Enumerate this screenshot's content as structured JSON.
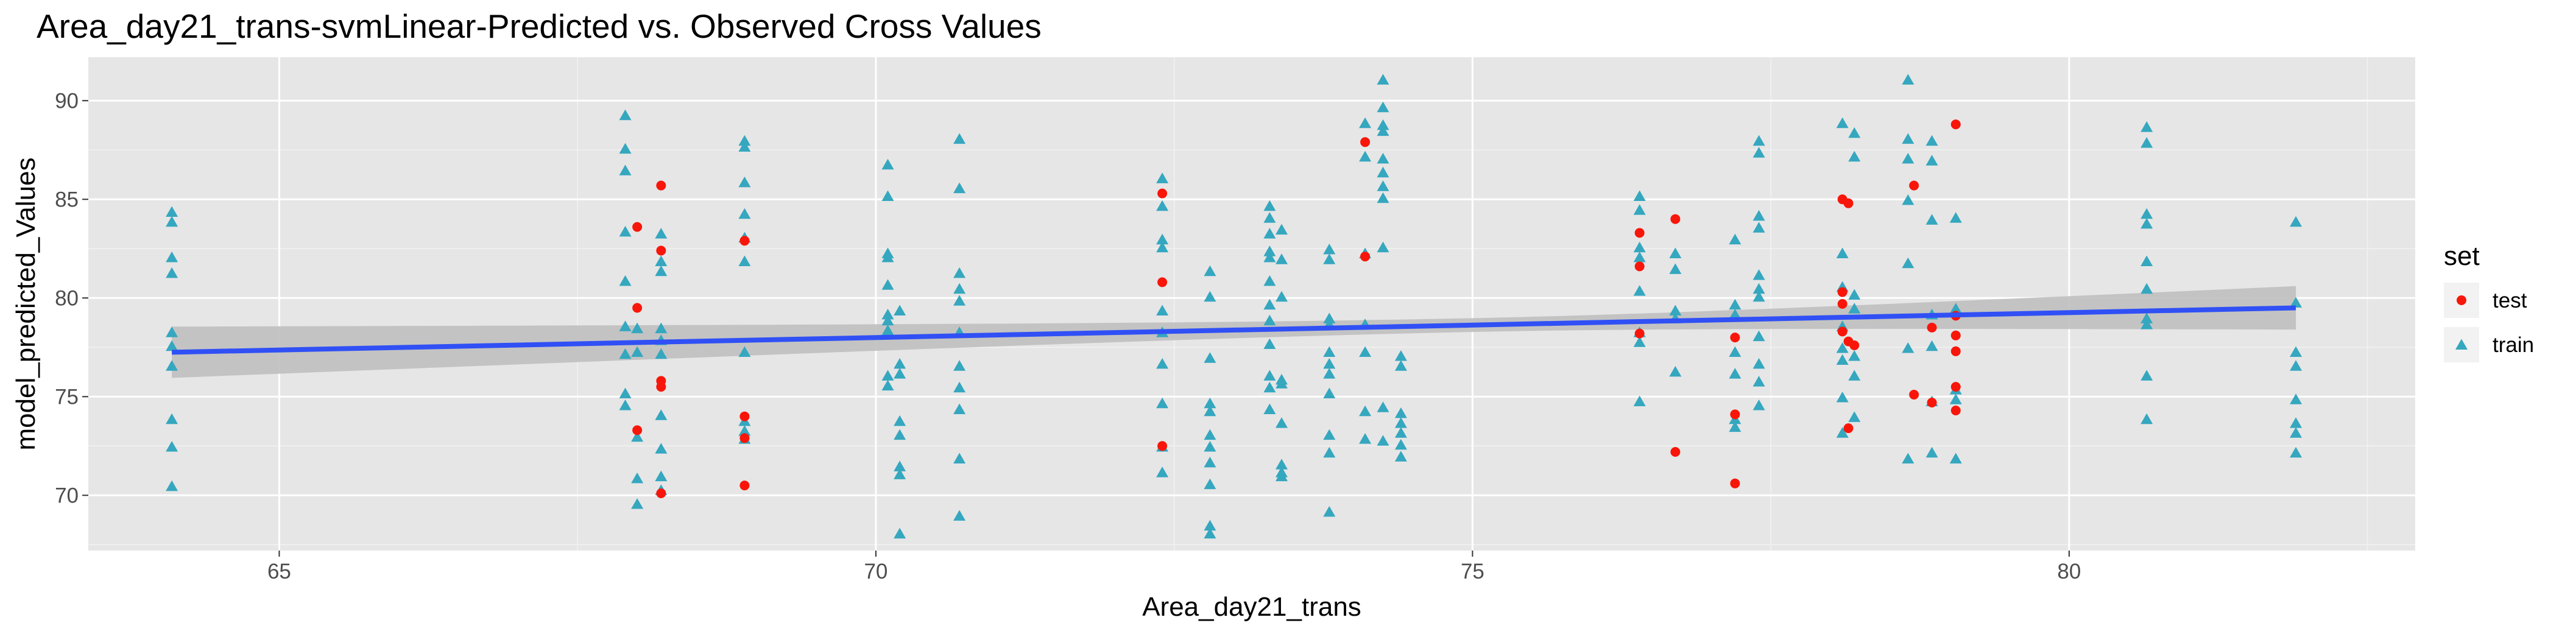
{
  "chart_data": {
    "type": "scatter",
    "title": "Area_day21_trans-svmLinear-Predicted vs. Observed Cross Values",
    "xlabel": "Area_day21_trans",
    "ylabel": "model_predicted_Values",
    "xlim": [
      63.4,
      82.9
    ],
    "ylim": [
      67.2,
      92.2
    ],
    "x_ticks": [
      65,
      70,
      75,
      80
    ],
    "y_ticks": [
      70,
      75,
      80,
      85,
      90
    ],
    "grid": true,
    "legend": {
      "title": "set",
      "position": "right",
      "entries": [
        "test",
        "train"
      ]
    },
    "colors": {
      "test": "#f8160a",
      "train": "#35a7bf",
      "fit_line": "#3050f5",
      "ribbon": "#bfbfbf",
      "panel": "#e6e6e6"
    },
    "series": [
      {
        "name": "test",
        "marker": "circle",
        "points": [
          [
            68.0,
            83.6
          ],
          [
            68.0,
            79.5
          ],
          [
            68.0,
            73.3
          ],
          [
            68.2,
            85.7
          ],
          [
            68.2,
            82.4
          ],
          [
            68.2,
            75.8
          ],
          [
            68.2,
            75.5
          ],
          [
            68.2,
            70.1
          ],
          [
            68.9,
            82.9
          ],
          [
            68.9,
            74.0
          ],
          [
            68.9,
            72.9
          ],
          [
            68.9,
            70.5
          ],
          [
            72.4,
            85.3
          ],
          [
            72.4,
            80.8
          ],
          [
            72.4,
            72.5
          ],
          [
            74.1,
            87.9
          ],
          [
            74.1,
            82.1
          ],
          [
            76.4,
            83.3
          ],
          [
            76.4,
            81.6
          ],
          [
            76.4,
            78.2
          ],
          [
            76.7,
            84.0
          ],
          [
            76.7,
            72.2
          ],
          [
            77.2,
            78.0
          ],
          [
            77.2,
            74.1
          ],
          [
            77.2,
            70.6
          ],
          [
            78.1,
            85.0
          ],
          [
            78.15,
            84.8
          ],
          [
            78.1,
            80.3
          ],
          [
            78.1,
            79.7
          ],
          [
            78.1,
            78.3
          ],
          [
            78.15,
            77.8
          ],
          [
            78.2,
            77.6
          ],
          [
            78.15,
            73.4
          ],
          [
            78.7,
            85.7
          ],
          [
            78.7,
            75.1
          ],
          [
            78.85,
            78.5
          ],
          [
            78.85,
            74.7
          ],
          [
            79.05,
            88.8
          ],
          [
            79.05,
            79.1
          ],
          [
            79.05,
            78.1
          ],
          [
            79.05,
            77.3
          ],
          [
            79.05,
            75.5
          ],
          [
            79.05,
            74.3
          ]
        ]
      },
      {
        "name": "train",
        "marker": "triangle",
        "points": [
          [
            64.1,
            84.3
          ],
          [
            64.1,
            83.8
          ],
          [
            64.1,
            82.0
          ],
          [
            64.1,
            81.2
          ],
          [
            64.1,
            78.2
          ],
          [
            64.1,
            77.5
          ],
          [
            64.1,
            76.5
          ],
          [
            64.1,
            73.8
          ],
          [
            64.1,
            72.4
          ],
          [
            64.1,
            70.4
          ],
          [
            67.9,
            89.2
          ],
          [
            67.9,
            87.5
          ],
          [
            67.9,
            86.4
          ],
          [
            67.9,
            83.3
          ],
          [
            67.9,
            80.8
          ],
          [
            67.9,
            78.5
          ],
          [
            67.9,
            77.1
          ],
          [
            67.9,
            75.1
          ],
          [
            67.9,
            74.5
          ],
          [
            68.0,
            78.4
          ],
          [
            68.0,
            77.2
          ],
          [
            68.0,
            72.9
          ],
          [
            68.0,
            70.8
          ],
          [
            68.0,
            69.5
          ],
          [
            68.2,
            83.2
          ],
          [
            68.2,
            81.8
          ],
          [
            68.2,
            81.3
          ],
          [
            68.2,
            78.4
          ],
          [
            68.2,
            77.8
          ],
          [
            68.2,
            77.1
          ],
          [
            68.2,
            74.0
          ],
          [
            68.2,
            72.3
          ],
          [
            68.2,
            70.9
          ],
          [
            68.2,
            70.2
          ],
          [
            68.9,
            87.9
          ],
          [
            68.9,
            87.6
          ],
          [
            68.9,
            85.8
          ],
          [
            68.9,
            84.2
          ],
          [
            68.9,
            83.0
          ],
          [
            68.9,
            81.8
          ],
          [
            68.9,
            77.2
          ],
          [
            68.9,
            73.7
          ],
          [
            68.9,
            73.2
          ],
          [
            68.9,
            72.8
          ],
          [
            70.1,
            86.7
          ],
          [
            70.1,
            85.1
          ],
          [
            70.1,
            82.2
          ],
          [
            70.1,
            82.0
          ],
          [
            70.1,
            80.6
          ],
          [
            70.1,
            79.1
          ],
          [
            70.1,
            78.8
          ],
          [
            70.1,
            78.3
          ],
          [
            70.1,
            76.0
          ],
          [
            70.1,
            75.5
          ],
          [
            70.2,
            79.3
          ],
          [
            70.2,
            76.6
          ],
          [
            70.2,
            76.1
          ],
          [
            70.2,
            73.7
          ],
          [
            70.2,
            73.0
          ],
          [
            70.2,
            71.4
          ],
          [
            70.2,
            71.0
          ],
          [
            70.2,
            68.0
          ],
          [
            70.7,
            88.0
          ],
          [
            70.7,
            85.5
          ],
          [
            70.7,
            81.2
          ],
          [
            70.7,
            80.4
          ],
          [
            70.7,
            79.8
          ],
          [
            70.7,
            78.2
          ],
          [
            70.7,
            76.5
          ],
          [
            70.7,
            75.4
          ],
          [
            70.7,
            74.3
          ],
          [
            70.7,
            71.8
          ],
          [
            70.7,
            68.9
          ],
          [
            72.4,
            86.0
          ],
          [
            72.4,
            84.6
          ],
          [
            72.4,
            82.9
          ],
          [
            72.4,
            82.5
          ],
          [
            72.4,
            79.3
          ],
          [
            72.4,
            78.2
          ],
          [
            72.4,
            76.6
          ],
          [
            72.4,
            74.6
          ],
          [
            72.4,
            72.4
          ],
          [
            72.4,
            71.1
          ],
          [
            72.8,
            81.3
          ],
          [
            72.8,
            80.0
          ],
          [
            72.8,
            76.9
          ],
          [
            72.8,
            74.6
          ],
          [
            72.8,
            74.2
          ],
          [
            72.8,
            73.0
          ],
          [
            72.8,
            72.4
          ],
          [
            72.8,
            71.6
          ],
          [
            72.8,
            70.5
          ],
          [
            72.8,
            68.4
          ],
          [
            72.8,
            68.0
          ],
          [
            73.3,
            84.6
          ],
          [
            73.3,
            84.0
          ],
          [
            73.3,
            83.2
          ],
          [
            73.3,
            82.3
          ],
          [
            73.3,
            82.0
          ],
          [
            73.3,
            80.8
          ],
          [
            73.3,
            79.6
          ],
          [
            73.3,
            78.8
          ],
          [
            73.3,
            77.6
          ],
          [
            73.3,
            76.0
          ],
          [
            73.3,
            75.4
          ],
          [
            73.3,
            74.3
          ],
          [
            73.4,
            83.4
          ],
          [
            73.4,
            81.9
          ],
          [
            73.4,
            80.0
          ],
          [
            73.4,
            75.8
          ],
          [
            73.4,
            75.6
          ],
          [
            73.4,
            73.6
          ],
          [
            73.4,
            71.5
          ],
          [
            73.4,
            71.1
          ],
          [
            73.4,
            70.9
          ],
          [
            73.8,
            82.4
          ],
          [
            73.8,
            81.9
          ],
          [
            73.8,
            78.9
          ],
          [
            73.8,
            78.6
          ],
          [
            73.8,
            77.2
          ],
          [
            73.8,
            76.6
          ],
          [
            73.8,
            76.1
          ],
          [
            73.8,
            75.1
          ],
          [
            73.8,
            73.0
          ],
          [
            73.8,
            72.1
          ],
          [
            73.8,
            69.1
          ],
          [
            74.1,
            88.8
          ],
          [
            74.1,
            87.1
          ],
          [
            74.1,
            82.2
          ],
          [
            74.1,
            78.6
          ],
          [
            74.1,
            77.2
          ],
          [
            74.1,
            74.2
          ],
          [
            74.1,
            72.8
          ],
          [
            74.25,
            91.0
          ],
          [
            74.25,
            89.6
          ],
          [
            74.25,
            88.7
          ],
          [
            74.25,
            88.4
          ],
          [
            74.25,
            87.0
          ],
          [
            74.25,
            86.3
          ],
          [
            74.25,
            85.6
          ],
          [
            74.25,
            85.0
          ],
          [
            74.25,
            82.5
          ],
          [
            74.25,
            74.4
          ],
          [
            74.25,
            72.7
          ],
          [
            74.4,
            77.0
          ],
          [
            74.4,
            76.5
          ],
          [
            74.4,
            74.1
          ],
          [
            74.4,
            73.6
          ],
          [
            74.4,
            73.1
          ],
          [
            74.4,
            72.5
          ],
          [
            74.4,
            71.9
          ],
          [
            76.4,
            85.1
          ],
          [
            76.4,
            84.4
          ],
          [
            76.4,
            82.5
          ],
          [
            76.4,
            82.0
          ],
          [
            76.4,
            80.3
          ],
          [
            76.4,
            78.2
          ],
          [
            76.4,
            77.7
          ],
          [
            76.4,
            74.7
          ],
          [
            76.7,
            82.2
          ],
          [
            76.7,
            81.4
          ],
          [
            76.7,
            79.3
          ],
          [
            76.7,
            78.9
          ],
          [
            76.7,
            76.2
          ],
          [
            77.2,
            82.9
          ],
          [
            77.2,
            79.6
          ],
          [
            77.2,
            79.1
          ],
          [
            77.2,
            77.2
          ],
          [
            77.2,
            76.1
          ],
          [
            77.2,
            73.8
          ],
          [
            77.2,
            73.4
          ],
          [
            77.4,
            87.9
          ],
          [
            77.4,
            87.3
          ],
          [
            77.4,
            84.1
          ],
          [
            77.4,
            83.5
          ],
          [
            77.4,
            81.1
          ],
          [
            77.4,
            80.4
          ],
          [
            77.4,
            80.0
          ],
          [
            77.4,
            78.0
          ],
          [
            77.4,
            76.6
          ],
          [
            77.4,
            75.7
          ],
          [
            77.4,
            74.5
          ],
          [
            78.1,
            88.8
          ],
          [
            78.1,
            82.2
          ],
          [
            78.1,
            80.5
          ],
          [
            78.1,
            78.5
          ],
          [
            78.1,
            77.4
          ],
          [
            78.1,
            76.8
          ],
          [
            78.1,
            74.9
          ],
          [
            78.1,
            73.1
          ],
          [
            78.2,
            88.3
          ],
          [
            78.2,
            87.1
          ],
          [
            78.2,
            80.1
          ],
          [
            78.2,
            79.4
          ],
          [
            78.2,
            77.0
          ],
          [
            78.2,
            76.0
          ],
          [
            78.2,
            73.9
          ],
          [
            78.65,
            91.0
          ],
          [
            78.65,
            88.0
          ],
          [
            78.65,
            87.0
          ],
          [
            78.65,
            84.9
          ],
          [
            78.65,
            81.7
          ],
          [
            78.65,
            77.4
          ],
          [
            78.65,
            71.8
          ],
          [
            78.85,
            87.9
          ],
          [
            78.85,
            86.9
          ],
          [
            78.85,
            83.9
          ],
          [
            78.85,
            79.1
          ],
          [
            78.85,
            77.5
          ],
          [
            78.85,
            74.7
          ],
          [
            78.85,
            72.1
          ],
          [
            79.05,
            84.0
          ],
          [
            79.05,
            79.4
          ],
          [
            79.05,
            75.3
          ],
          [
            79.05,
            74.8
          ],
          [
            79.05,
            71.8
          ],
          [
            80.65,
            88.6
          ],
          [
            80.65,
            87.8
          ],
          [
            80.65,
            84.2
          ],
          [
            80.65,
            83.7
          ],
          [
            80.65,
            81.8
          ],
          [
            80.65,
            80.4
          ],
          [
            80.65,
            78.9
          ],
          [
            80.65,
            78.6
          ],
          [
            80.65,
            76.0
          ],
          [
            80.65,
            73.8
          ],
          [
            81.9,
            83.8
          ],
          [
            81.9,
            79.7
          ],
          [
            81.9,
            77.2
          ],
          [
            81.9,
            76.5
          ],
          [
            81.9,
            74.8
          ],
          [
            81.9,
            73.6
          ],
          [
            81.9,
            73.1
          ],
          [
            81.9,
            72.1
          ]
        ]
      }
    ],
    "fit": {
      "method": "linear",
      "x": [
        64.1,
        81.9
      ],
      "y": [
        77.25,
        79.5
      ],
      "ci_lower": [
        75.95,
        78.4
      ],
      "ci_upper": [
        78.55,
        80.6
      ],
      "x_center": 75.0,
      "ci_center_halfwidth": 0.35
    }
  }
}
